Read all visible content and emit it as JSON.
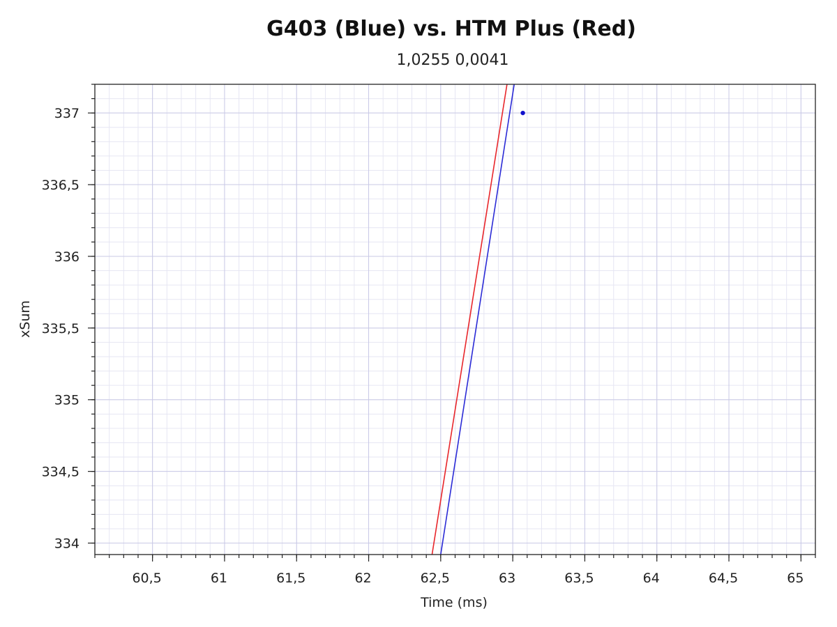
{
  "chart_data": {
    "type": "line",
    "title": "G403 (Blue) vs. HTM Plus (Red)",
    "subtitle": "1,0255 0,0041",
    "xlabel": "Time (ms)",
    "ylabel": "xSum",
    "xlim": [
      60.1,
      65.1
    ],
    "ylim": [
      333.92,
      337.2
    ],
    "x_ticks": [
      60.5,
      61,
      61.5,
      62,
      62.5,
      63,
      63.5,
      64,
      64.5,
      65
    ],
    "x_tick_labels": [
      "60,5",
      "61",
      "61,5",
      "62",
      "62,5",
      "63",
      "63,5",
      "64",
      "64,5",
      "65"
    ],
    "y_ticks": [
      334,
      334.5,
      335,
      335.5,
      336,
      336.5,
      337
    ],
    "y_tick_labels": [
      "334",
      "334,5",
      "335",
      "335,5",
      "336",
      "336,5",
      "337"
    ],
    "grid": true,
    "series": [
      {
        "color": "#e8262b",
        "x": [
          62.44,
          62.96
        ],
        "y": [
          333.92,
          337.2
        ]
      },
      {
        "color": "#2b2bd6",
        "x": [
          62.5,
          63.01
        ],
        "y": [
          333.92,
          337.2
        ]
      }
    ],
    "points": [
      {
        "x": 63.07,
        "y": 337.0,
        "color": "#1111cc"
      }
    ]
  }
}
